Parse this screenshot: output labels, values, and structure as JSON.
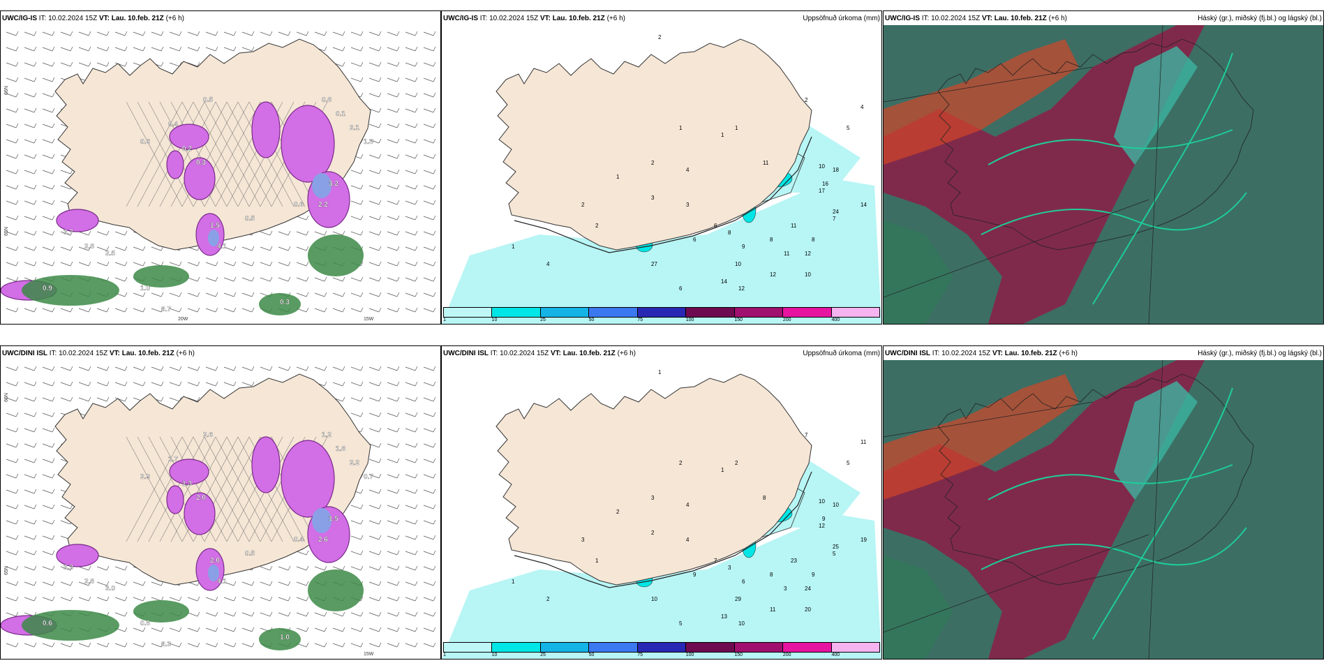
{
  "panels": [
    {
      "id": "p1",
      "model": "UWC/IG-IS",
      "it": "IT: 10.02.2024 15Z",
      "vt_label": "VT:",
      "vt": "Lau. 10.feb. 21Z",
      "lead": "(+6 h)",
      "right": "",
      "axis": {
        "lat_top": "66N",
        "lat_mid": "65N",
        "lon_a": "20W",
        "lon_b": "15W"
      },
      "values": [
        "0.5",
        "0.4",
        "0.6",
        "0.2",
        "0.3",
        "0.8",
        "0.1",
        "2.1",
        "1.8",
        "3.2",
        "2.2",
        "1.5",
        "4.1",
        "3.7",
        "0.9",
        "1.0",
        "0.7",
        "0.3",
        "0.6",
        "0.5",
        "2.8",
        "2.5"
      ]
    },
    {
      "id": "p2",
      "model": "UWC/IG-IS",
      "it": "IT: 10.02.2024 15Z",
      "vt_label": "VT:",
      "vt": "Lau. 10.feb. 21Z",
      "lead": "(+6 h)",
      "right": "Uppsöfnuð úrkoma (mm)",
      "values": [
        "2",
        "1",
        "1",
        "1",
        "2",
        "4",
        "3",
        "1",
        "2",
        "2",
        "3",
        "6",
        "8",
        "6",
        "9",
        "8",
        "12",
        "10",
        "12",
        "14",
        "17",
        "24",
        "11",
        "18",
        "16",
        "10",
        "7",
        "5",
        "2",
        "4",
        "11",
        "14",
        "10",
        "12",
        "27",
        "8",
        "11",
        "6",
        "4",
        "1"
      ]
    },
    {
      "id": "p3",
      "model": "UWC/IG-IS",
      "it": "IT: 10.02.2024 15Z",
      "vt_label": "VT:",
      "vt": "Lau. 10.feb. 21Z",
      "lead": "(+6 h)",
      "right": "Háský (gr.), miðský (fj.bl.) og lágský (bl.)"
    },
    {
      "id": "p4",
      "model": "UWC/DINI ISL",
      "it": "IT: 10.02.2024 15Z",
      "vt_label": "VT:",
      "vt": "Lau. 10.feb. 21Z",
      "lead": "(+6 h)",
      "right": "",
      "axis": {
        "lat_top": "66N",
        "lat_mid": "65N",
        "lon_a": "",
        "lon_b": "15W"
      },
      "values": [
        "2.6",
        "1.7",
        "2.9",
        "1.3",
        "2.0",
        "1.2",
        "1.8",
        "2.2",
        "0.7",
        "1.5",
        "2.6",
        "2.0",
        "4.1",
        "3.3",
        "0.6",
        "0.8",
        "0.3",
        "1.0",
        "0.4",
        "0.5",
        "2.8",
        "3.0"
      ]
    },
    {
      "id": "p5",
      "model": "UWC/DINI ISL",
      "it": "IT: 10.02.2024 15Z",
      "vt_label": "VT:",
      "vt": "Lau. 10.feb. 21Z",
      "lead": "(+6 h)",
      "right": "Uppsöfnuð úrkoma (mm)",
      "values": [
        "1",
        "2",
        "1",
        "2",
        "3",
        "4",
        "2",
        "2",
        "3",
        "1",
        "4",
        "7",
        "3",
        "9",
        "6",
        "8",
        "11",
        "20",
        "24",
        "19",
        "12",
        "25",
        "23",
        "10",
        "9",
        "10",
        "5",
        "5",
        "7",
        "11",
        "8",
        "13",
        "29",
        "10",
        "10",
        "9",
        "3",
        "5",
        "2",
        "1"
      ]
    },
    {
      "id": "p6",
      "model": "UWC/DINI ISL",
      "it": "IT: 10.02.2024 15Z",
      "vt_label": "VT:",
      "vt": "Lau. 10.feb. 21Z",
      "lead": "(+6 h)",
      "right": "Háský (gr.), miðský (fj.bl.) og lágský (bl.)"
    }
  ],
  "colorbar": {
    "labels": [
      "1",
      "10",
      "25",
      "50",
      "75",
      "100",
      "150",
      "200",
      "400"
    ],
    "colors": [
      "#bff7f7",
      "#00e6e6",
      "#14b4e6",
      "#3c78f0",
      "#2828b4",
      "#6e0a50",
      "#a0106e",
      "#e614a0",
      "#f5b4f0"
    ]
  },
  "colors": {
    "land": "#f5e6d6",
    "sea": "#ffffff",
    "precip_light": "#b8f5f5",
    "cloud_dark": "#3c6e64",
    "cloud_high": "#8c1e46",
    "cloud_green": "#1ecc9a"
  }
}
